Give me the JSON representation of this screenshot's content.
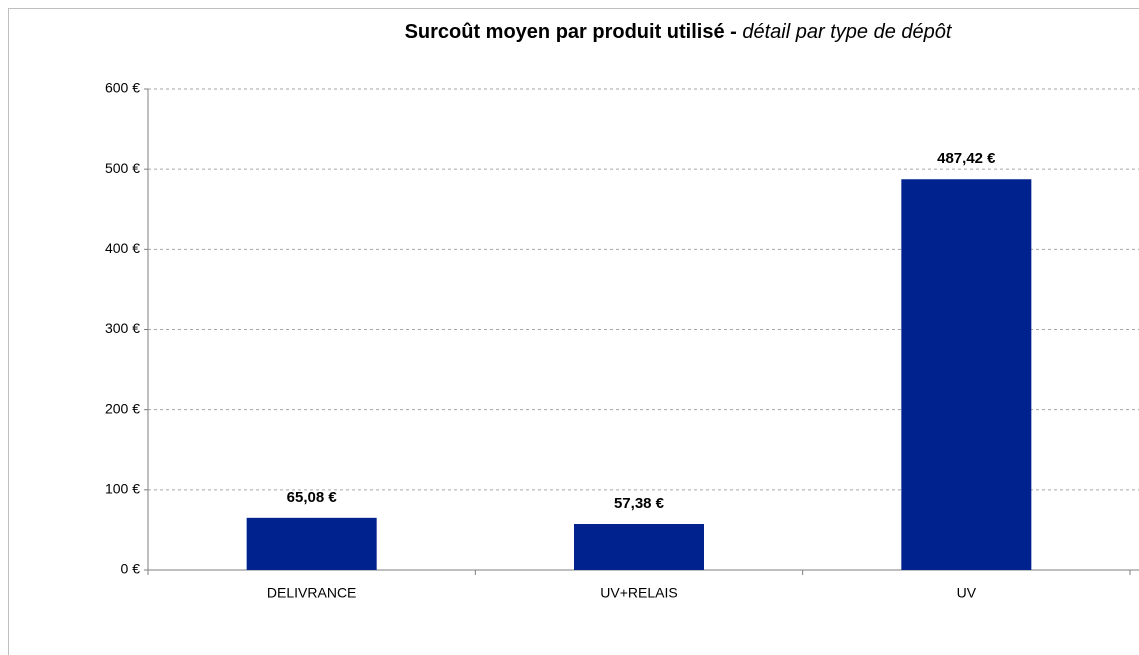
{
  "chart_data": {
    "type": "bar",
    "title": "Surcoût moyen par produit utilisé -",
    "subtitle": "détail par type de dépôt",
    "categories": [
      "DELIVRANCE",
      "UV+RELAIS",
      "UV"
    ],
    "values": [
      65.08,
      57.38,
      487.42
    ],
    "value_labels": [
      "65,08 €",
      "57,38 €",
      "487,42 €"
    ],
    "color": "#00228f",
    "ylim": [
      0,
      600
    ],
    "yticks": [
      {
        "value": 0,
        "label": "0 €"
      },
      {
        "value": 100,
        "label": "100 €"
      },
      {
        "value": 200,
        "label": "200 €"
      },
      {
        "value": 300,
        "label": "300 €"
      },
      {
        "value": 400,
        "label": "400 €"
      },
      {
        "value": 500,
        "label": "500 €"
      },
      {
        "value": 600,
        "label": "600 €"
      }
    ],
    "grid": true
  }
}
